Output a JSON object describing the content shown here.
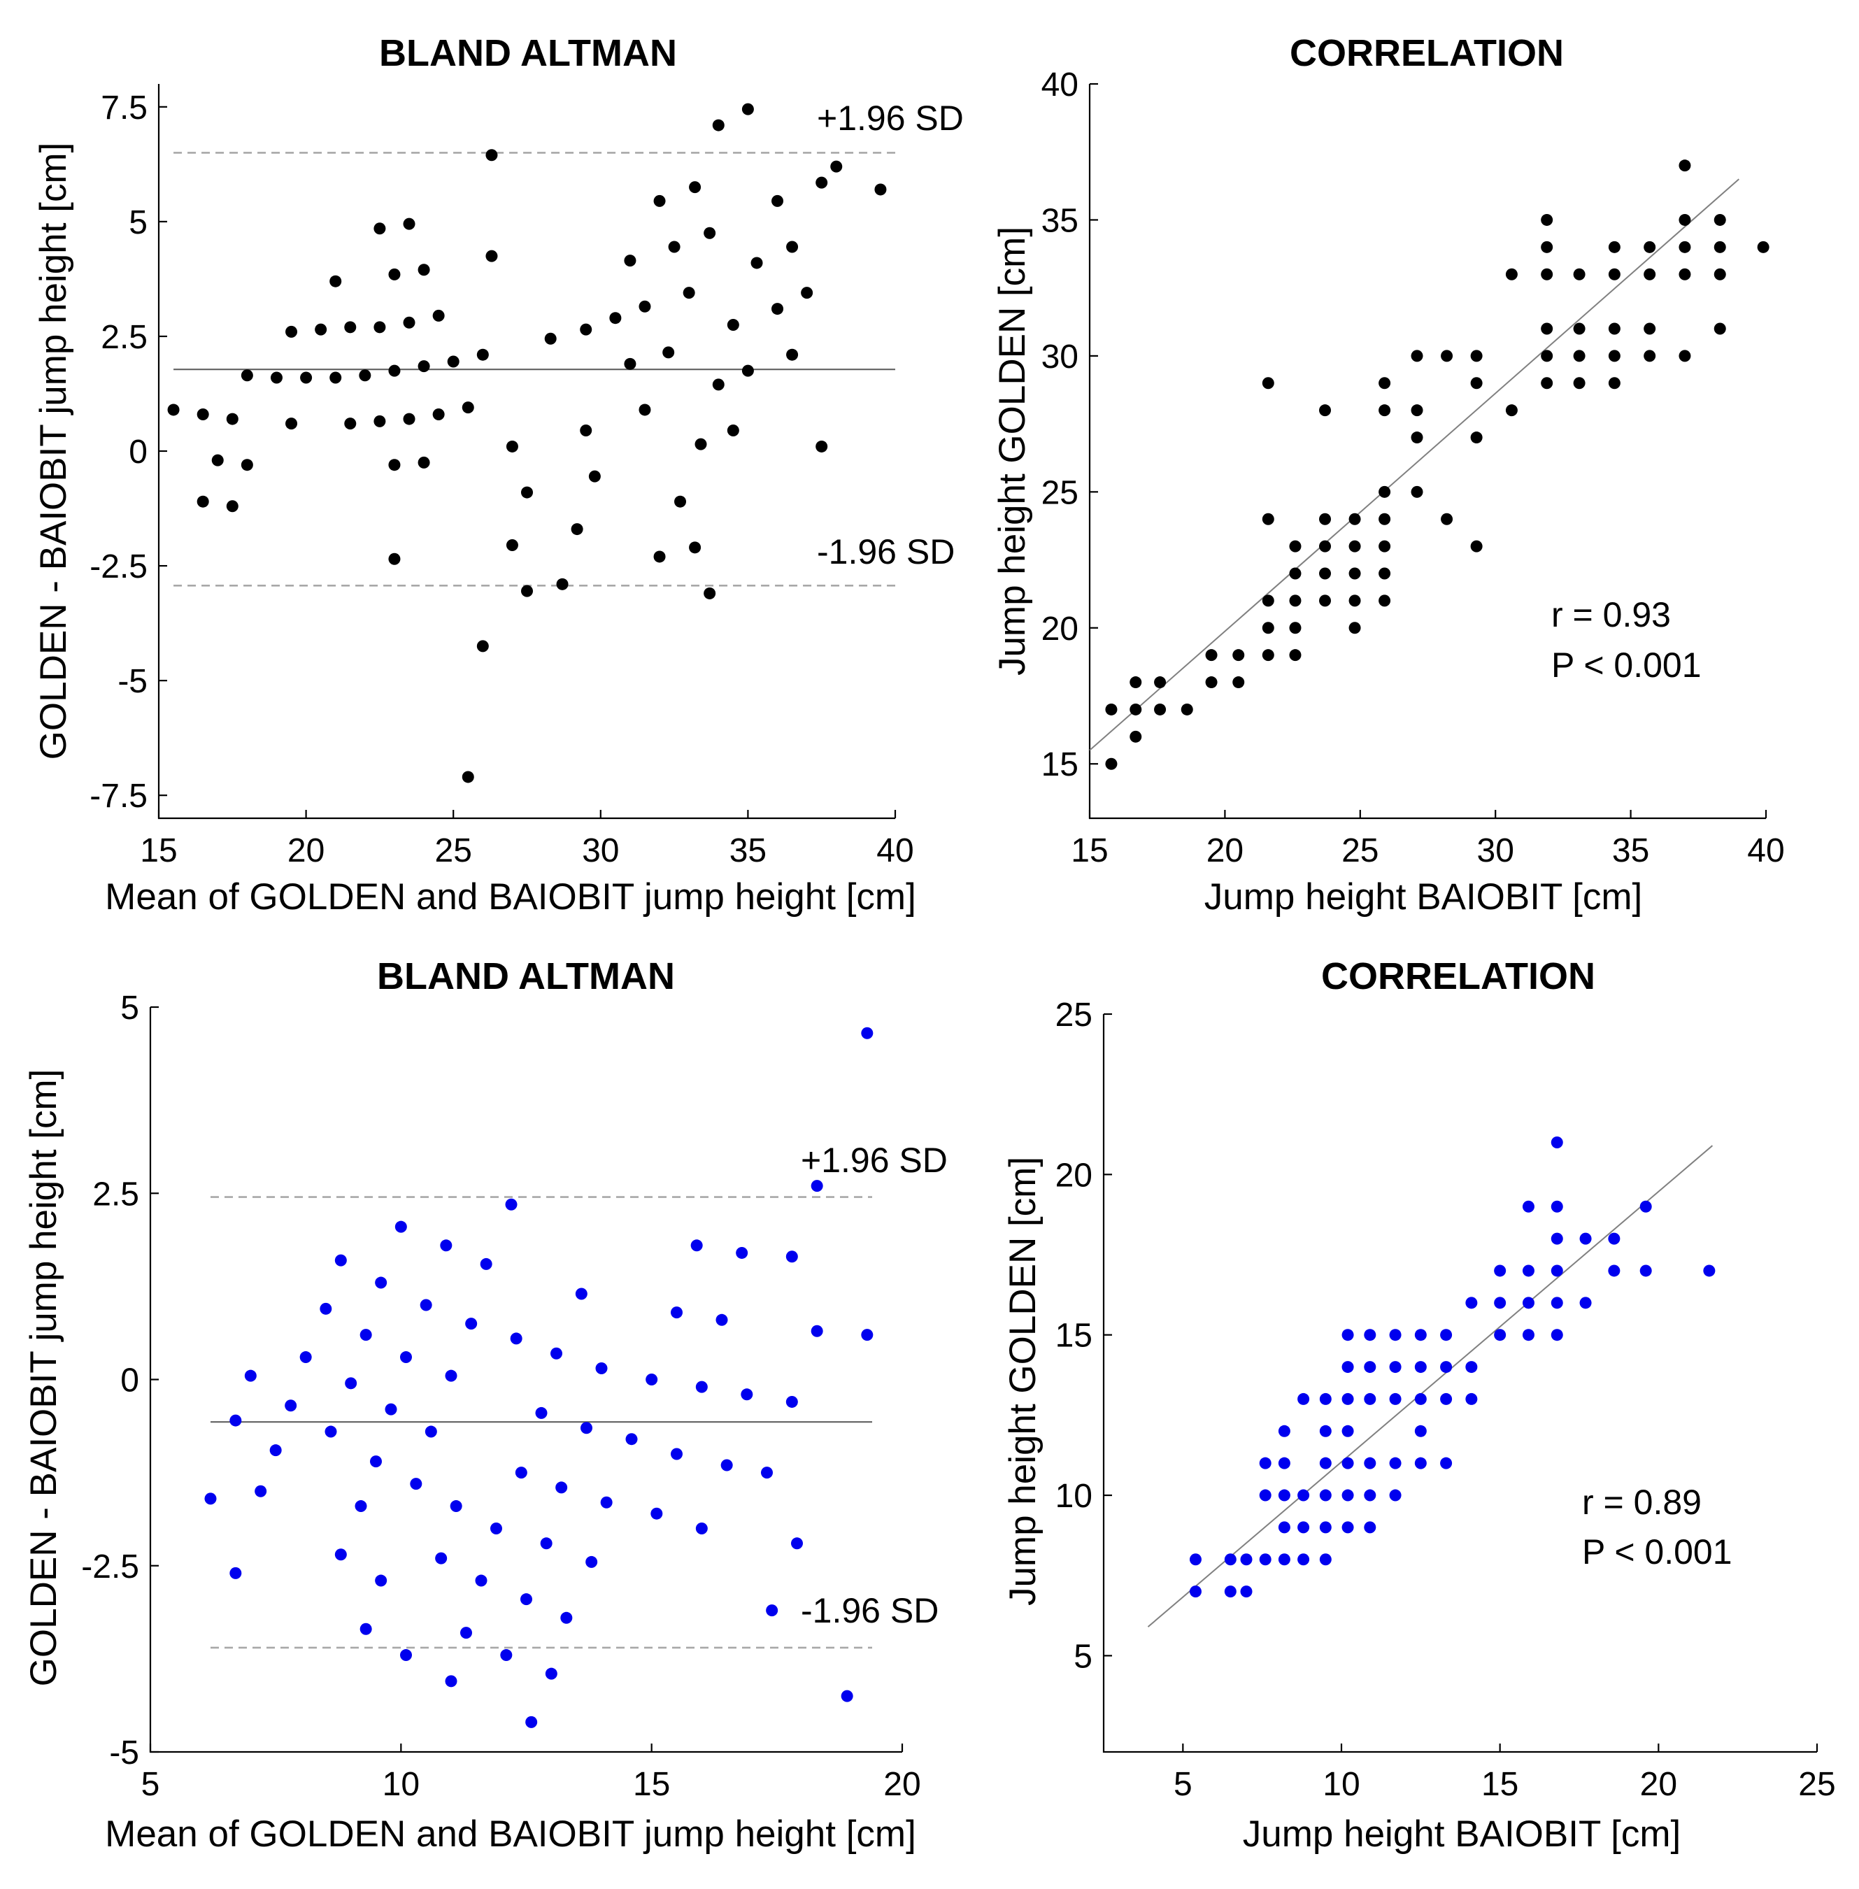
{
  "colors": {
    "black": "#000000",
    "blue": "#0000ee",
    "meanline": "#606060",
    "limits": "#a8a8a8",
    "fit": "#808080"
  },
  "chart_data": [
    {
      "type": "scatter",
      "id": "ba-top",
      "title": "BLAND ALTMAN",
      "xlabel": "Mean of GOLDEN and BAIOBIT jump height [cm]",
      "ylabel": "GOLDEN - BAIOBIT jump height [cm]",
      "xlim": [
        15,
        40
      ],
      "ylim": [
        -8,
        8
      ],
      "xticks": [
        15,
        20,
        25,
        30,
        35,
        40
      ],
      "xtick_labels": [
        "15",
        "20",
        "25",
        "30",
        "35",
        "40"
      ],
      "yticks": [
        7.5,
        5,
        2.5,
        0,
        -2.5,
        -5,
        -7.5
      ],
      "ytick_labels": [
        "7.5",
        "5",
        "2.5",
        "0",
        "-2.5",
        "-5",
        "-7.5"
      ],
      "color": "#000000",
      "mean_line": 1.78,
      "upper_limit": 6.5,
      "lower_limit": -2.93,
      "line_x": [
        15.5,
        40
      ],
      "upper_label": "+1.96 SD",
      "lower_label": "-1.96 SD",
      "points": [
        [
          15.5,
          0.9
        ],
        [
          16.5,
          0.8
        ],
        [
          16.5,
          -1.1
        ],
        [
          17,
          -0.2
        ],
        [
          17.5,
          0.7
        ],
        [
          17.5,
          -1.2
        ],
        [
          18,
          1.65
        ],
        [
          18,
          -0.3
        ],
        [
          19,
          1.6
        ],
        [
          19.5,
          2.6
        ],
        [
          19.5,
          0.6
        ],
        [
          20,
          1.6
        ],
        [
          20.5,
          2.65
        ],
        [
          21,
          3.7
        ],
        [
          21,
          1.6
        ],
        [
          21.5,
          2.7
        ],
        [
          21.5,
          0.6
        ],
        [
          22,
          1.65
        ],
        [
          22.5,
          4.85
        ],
        [
          22.5,
          2.7
        ],
        [
          22.5,
          0.65
        ],
        [
          23,
          3.85
        ],
        [
          23,
          1.75
        ],
        [
          23,
          -0.3
        ],
        [
          23,
          -2.35
        ],
        [
          23.5,
          4.95
        ],
        [
          23.5,
          2.8
        ],
        [
          23.5,
          0.7
        ],
        [
          24,
          3.95
        ],
        [
          24,
          1.85
        ],
        [
          24,
          -0.25
        ],
        [
          24.5,
          2.95
        ],
        [
          24.5,
          0.8
        ],
        [
          25,
          1.95
        ],
        [
          25.5,
          0.95
        ],
        [
          25.5,
          -7.1
        ],
        [
          26,
          2.1
        ],
        [
          26,
          -4.25
        ],
        [
          26.3,
          4.25
        ],
        [
          26.3,
          6.45
        ],
        [
          27,
          0.1
        ],
        [
          27,
          -2.05
        ],
        [
          27.5,
          -0.9
        ],
        [
          27.5,
          -3.05
        ],
        [
          28.3,
          2.45
        ],
        [
          28.7,
          -2.9
        ],
        [
          29.2,
          -1.7
        ],
        [
          29.5,
          2.65
        ],
        [
          29.5,
          0.45
        ],
        [
          29.8,
          -0.55
        ],
        [
          30.5,
          2.9
        ],
        [
          31,
          4.15
        ],
        [
          31,
          1.9
        ],
        [
          31.5,
          3.15
        ],
        [
          31.5,
          0.9
        ],
        [
          32,
          5.45
        ],
        [
          32,
          -2.3
        ],
        [
          32.3,
          2.15
        ],
        [
          32.5,
          4.45
        ],
        [
          32.7,
          -1.1
        ],
        [
          33,
          3.45
        ],
        [
          33.2,
          5.75
        ],
        [
          33.2,
          -2.1
        ],
        [
          33.4,
          0.15
        ],
        [
          33.7,
          4.75
        ],
        [
          33.7,
          -3.1
        ],
        [
          34,
          1.45
        ],
        [
          34,
          7.1
        ],
        [
          34.5,
          2.75
        ],
        [
          34.5,
          0.45
        ],
        [
          35,
          7.45
        ],
        [
          35,
          1.75
        ],
        [
          35.3,
          4.1
        ],
        [
          36,
          5.45
        ],
        [
          36,
          3.1
        ],
        [
          36.5,
          4.45
        ],
        [
          36.5,
          2.1
        ],
        [
          37,
          3.45
        ],
        [
          37.5,
          5.85
        ],
        [
          37.5,
          0.1
        ],
        [
          38,
          6.2
        ],
        [
          39.5,
          5.7
        ]
      ]
    },
    {
      "type": "scatter",
      "id": "corr-top",
      "title": "CORRELATION",
      "xlabel": "Jump height BAIOBIT [cm]",
      "ylabel": "Jump height GOLDEN [cm]",
      "xlim": [
        15,
        40
      ],
      "ylim": [
        13,
        40
      ],
      "xticks": [
        15,
        20,
        25,
        30,
        35,
        40
      ],
      "xtick_labels": [
        "15",
        "20",
        "25",
        "30",
        "35",
        "40"
      ],
      "yticks": [
        40,
        35,
        30,
        25,
        20,
        15
      ],
      "ytick_labels": [
        "40",
        "35",
        "30",
        "25",
        "20",
        "15"
      ],
      "color": "#000000",
      "fit_line": [
        [
          15,
          15.5
        ],
        [
          39,
          36.5
        ]
      ],
      "r_text": "r = 0.93",
      "p_text": "P < 0.001",
      "points": [
        [
          15.8,
          15
        ],
        [
          15.8,
          17
        ],
        [
          16.7,
          18
        ],
        [
          16.7,
          17
        ],
        [
          16.7,
          16
        ],
        [
          17.6,
          18
        ],
        [
          17.6,
          17
        ],
        [
          18.6,
          17
        ],
        [
          19.5,
          19
        ],
        [
          19.5,
          18
        ],
        [
          20.5,
          19
        ],
        [
          20.5,
          18
        ],
        [
          21.6,
          29
        ],
        [
          21.6,
          24
        ],
        [
          21.6,
          21
        ],
        [
          21.6,
          20
        ],
        [
          21.6,
          19
        ],
        [
          22.6,
          23
        ],
        [
          22.6,
          22
        ],
        [
          22.6,
          21
        ],
        [
          22.6,
          20
        ],
        [
          22.6,
          19
        ],
        [
          23.7,
          28
        ],
        [
          23.7,
          24
        ],
        [
          23.7,
          23
        ],
        [
          23.7,
          22
        ],
        [
          23.7,
          21
        ],
        [
          24.8,
          24
        ],
        [
          24.8,
          23
        ],
        [
          24.8,
          22
        ],
        [
          24.8,
          21
        ],
        [
          24.8,
          20
        ],
        [
          25.9,
          29
        ],
        [
          25.9,
          28
        ],
        [
          25.9,
          25
        ],
        [
          25.9,
          24
        ],
        [
          25.9,
          23
        ],
        [
          25.9,
          22
        ],
        [
          25.9,
          21
        ],
        [
          27.1,
          30
        ],
        [
          27.1,
          28
        ],
        [
          27.1,
          27
        ],
        [
          27.1,
          25
        ],
        [
          28.2,
          30
        ],
        [
          28.2,
          24
        ],
        [
          29.3,
          30
        ],
        [
          29.3,
          29
        ],
        [
          29.3,
          27
        ],
        [
          29.3,
          23
        ],
        [
          30.6,
          33
        ],
        [
          30.6,
          28
        ],
        [
          31.9,
          35
        ],
        [
          31.9,
          34
        ],
        [
          31.9,
          33
        ],
        [
          31.9,
          31
        ],
        [
          31.9,
          30
        ],
        [
          31.9,
          29
        ],
        [
          33.1,
          33
        ],
        [
          33.1,
          31
        ],
        [
          33.1,
          30
        ],
        [
          33.1,
          29
        ],
        [
          34.4,
          34
        ],
        [
          34.4,
          33
        ],
        [
          34.4,
          31
        ],
        [
          34.4,
          30
        ],
        [
          34.4,
          29
        ],
        [
          35.7,
          34
        ],
        [
          35.7,
          33
        ],
        [
          35.7,
          31
        ],
        [
          35.7,
          30
        ],
        [
          37,
          37
        ],
        [
          37,
          35
        ],
        [
          37,
          34
        ],
        [
          37,
          33
        ],
        [
          37,
          30
        ],
        [
          38.3,
          35
        ],
        [
          38.3,
          34
        ],
        [
          38.3,
          33
        ],
        [
          38.3,
          31
        ],
        [
          39.9,
          34
        ]
      ]
    },
    {
      "type": "scatter",
      "id": "ba-bottom",
      "title": "BLAND ALTMAN",
      "xlabel": "Mean of GOLDEN and BAIOBIT jump height [cm]",
      "ylabel": "GOLDEN - BAIOBIT jump height [cm]",
      "xlim": [
        5,
        20
      ],
      "ylim": [
        -5,
        5
      ],
      "xticks": [
        5,
        10,
        15,
        20
      ],
      "xtick_labels": [
        "5",
        "10",
        "15",
        "20"
      ],
      "yticks": [
        5,
        2.5,
        0,
        -2.5,
        -5
      ],
      "ytick_labels": [
        "5",
        "2.5",
        "0",
        "-2.5",
        "-5"
      ],
      "color": "#0000ee",
      "mean_line": -0.57,
      "upper_limit": 2.45,
      "lower_limit": -3.6,
      "line_x": [
        6.2,
        19.4
      ],
      "upper_label": "+1.96 SD",
      "lower_label": "-1.96 SD",
      "points": [
        [
          6.2,
          -1.6
        ],
        [
          6.7,
          -0.55
        ],
        [
          6.7,
          -2.6
        ],
        [
          7,
          0.05
        ],
        [
          7.2,
          -1.5
        ],
        [
          7.5,
          -0.95
        ],
        [
          7.8,
          -0.35
        ],
        [
          8.1,
          0.3
        ],
        [
          8.5,
          0.95
        ],
        [
          8.6,
          -0.7
        ],
        [
          8.8,
          1.6
        ],
        [
          8.8,
          -2.35
        ],
        [
          9,
          -0.05
        ],
        [
          9.2,
          -1.7
        ],
        [
          9.3,
          0.6
        ],
        [
          9.3,
          -3.35
        ],
        [
          9.5,
          -1.1
        ],
        [
          9.6,
          1.3
        ],
        [
          9.6,
          -2.7
        ],
        [
          9.8,
          -0.4
        ],
        [
          10,
          2.05
        ],
        [
          10.1,
          0.3
        ],
        [
          10.1,
          -3.7
        ],
        [
          10.3,
          -1.4
        ],
        [
          10.5,
          1.0
        ],
        [
          10.6,
          -0.7
        ],
        [
          10.8,
          -2.4
        ],
        [
          10.9,
          1.8
        ],
        [
          11,
          0.05
        ],
        [
          11,
          -4.05
        ],
        [
          11.1,
          -1.7
        ],
        [
          11.3,
          -3.4
        ],
        [
          11.4,
          0.75
        ],
        [
          11.6,
          -2.7
        ],
        [
          11.7,
          1.55
        ],
        [
          11.9,
          -2.0
        ],
        [
          12.1,
          -3.7
        ],
        [
          12.2,
          2.35
        ],
        [
          12.3,
          0.55
        ],
        [
          12.4,
          -1.25
        ],
        [
          12.5,
          -2.95
        ],
        [
          12.6,
          -4.6
        ],
        [
          12.8,
          -0.45
        ],
        [
          12.9,
          -2.2
        ],
        [
          13,
          -3.95
        ],
        [
          13.1,
          0.35
        ],
        [
          13.2,
          -1.45
        ],
        [
          13.3,
          -3.2
        ],
        [
          13.6,
          1.15
        ],
        [
          13.7,
          -0.65
        ],
        [
          13.8,
          -2.45
        ],
        [
          14,
          0.15
        ],
        [
          14.1,
          -1.65
        ],
        [
          14.6,
          -0.8
        ],
        [
          15,
          0.0
        ],
        [
          15.1,
          -1.8
        ],
        [
          15.5,
          0.9
        ],
        [
          15.5,
          -1.0
        ],
        [
          15.9,
          1.8
        ],
        [
          16,
          -0.1
        ],
        [
          16,
          -2.0
        ],
        [
          16.4,
          0.8
        ],
        [
          16.5,
          -1.15
        ],
        [
          16.8,
          1.7
        ],
        [
          16.9,
          -0.2
        ],
        [
          17.3,
          -1.25
        ],
        [
          17.4,
          -3.1
        ],
        [
          17.8,
          1.65
        ],
        [
          17.8,
          -0.3
        ],
        [
          17.9,
          -2.2
        ],
        [
          18.3,
          2.6
        ],
        [
          18.3,
          0.65
        ],
        [
          18.9,
          -4.25
        ],
        [
          19.3,
          4.65
        ],
        [
          19.3,
          0.6
        ]
      ]
    },
    {
      "type": "scatter",
      "id": "corr-bottom",
      "title": "CORRELATION",
      "xlabel": "Jump height BAIOBIT [cm]",
      "ylabel": "Jump height GOLDEN [cm]",
      "xlim": [
        2.5,
        25
      ],
      "ylim": [
        2,
        25
      ],
      "xticks": [
        5,
        10,
        15,
        20,
        25
      ],
      "xtick_labels": [
        "5",
        "10",
        "15",
        "20",
        "25"
      ],
      "yticks": [
        25,
        20,
        15,
        10,
        5
      ],
      "ytick_labels": [
        "25",
        "20",
        "15",
        "10",
        "5"
      ],
      "color": "#0000ee",
      "fit_line": [
        [
          3.9,
          5.9
        ],
        [
          21.7,
          20.9
        ]
      ],
      "r_text": "r = 0.89",
      "p_text": "P < 0.001",
      "points": [
        [
          5.4,
          8
        ],
        [
          5.4,
          7
        ],
        [
          6.5,
          8
        ],
        [
          6.5,
          7
        ],
        [
          7,
          8
        ],
        [
          7,
          7
        ],
        [
          7.6,
          11
        ],
        [
          7.6,
          10
        ],
        [
          7.6,
          8
        ],
        [
          8.2,
          12
        ],
        [
          8.2,
          11
        ],
        [
          8.2,
          10
        ],
        [
          8.2,
          9
        ],
        [
          8.2,
          8
        ],
        [
          8.8,
          13
        ],
        [
          8.8,
          10
        ],
        [
          8.8,
          9
        ],
        [
          8.8,
          8
        ],
        [
          9.5,
          13
        ],
        [
          9.5,
          12
        ],
        [
          9.5,
          11
        ],
        [
          9.5,
          10
        ],
        [
          9.5,
          9
        ],
        [
          9.5,
          8
        ],
        [
          10.2,
          15
        ],
        [
          10.2,
          14
        ],
        [
          10.2,
          13
        ],
        [
          10.2,
          12
        ],
        [
          10.2,
          11
        ],
        [
          10.2,
          10
        ],
        [
          10.2,
          9
        ],
        [
          10.9,
          15
        ],
        [
          10.9,
          14
        ],
        [
          10.9,
          13
        ],
        [
          10.9,
          11
        ],
        [
          10.9,
          10
        ],
        [
          10.9,
          9
        ],
        [
          11.7,
          15
        ],
        [
          11.7,
          14
        ],
        [
          11.7,
          13
        ],
        [
          11.7,
          11
        ],
        [
          11.7,
          10
        ],
        [
          12.5,
          15
        ],
        [
          12.5,
          14
        ],
        [
          12.5,
          13
        ],
        [
          12.5,
          12
        ],
        [
          12.5,
          11
        ],
        [
          13.3,
          15
        ],
        [
          13.3,
          14
        ],
        [
          13.3,
          13
        ],
        [
          13.3,
          11
        ],
        [
          14.1,
          16
        ],
        [
          14.1,
          14
        ],
        [
          14.1,
          13
        ],
        [
          15,
          17
        ],
        [
          15,
          16
        ],
        [
          15,
          15
        ],
        [
          15.9,
          19
        ],
        [
          15.9,
          17
        ],
        [
          15.9,
          16
        ],
        [
          15.9,
          15
        ],
        [
          16.8,
          21
        ],
        [
          16.8,
          19
        ],
        [
          16.8,
          18
        ],
        [
          16.8,
          17
        ],
        [
          16.8,
          16
        ],
        [
          16.8,
          15
        ],
        [
          17.7,
          18
        ],
        [
          17.7,
          16
        ],
        [
          18.6,
          18
        ],
        [
          18.6,
          17
        ],
        [
          19.6,
          19
        ],
        [
          19.6,
          17
        ],
        [
          21.6,
          17
        ]
      ]
    }
  ]
}
